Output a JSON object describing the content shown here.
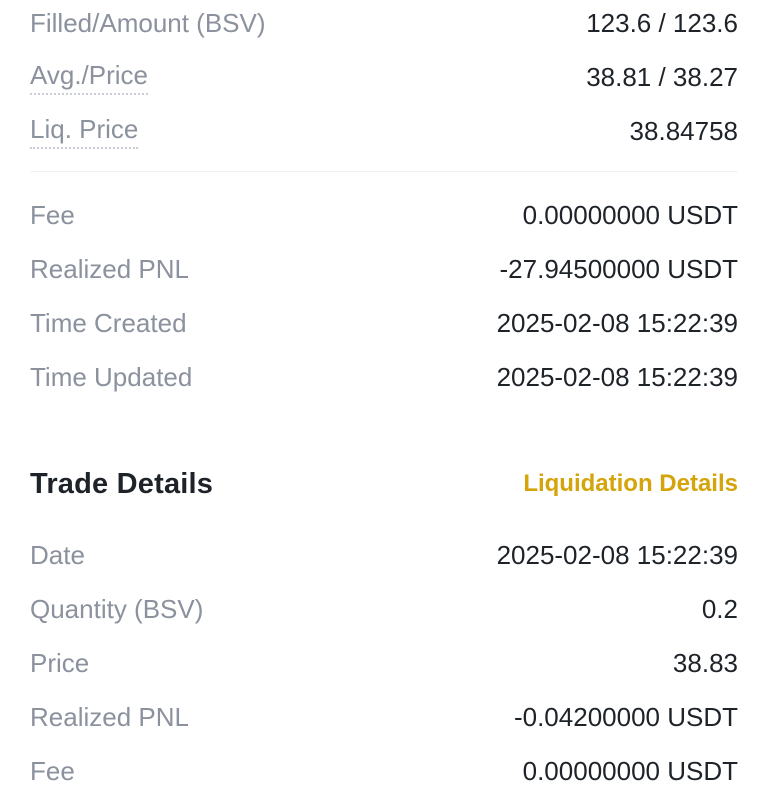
{
  "colors": {
    "background": "#FFFFFF",
    "label_text": "#8B929E",
    "value_text": "#1E2329",
    "link_gold": "#D5A30A",
    "divider": "#EEF0F3"
  },
  "order_summary": {
    "rows": [
      {
        "label": "Filled/Amount (BSV)",
        "value": "123.6 / 123.6"
      },
      {
        "label": "Avg./Price",
        "value": "38.81 / 38.27"
      },
      {
        "label": "Liq. Price",
        "value": "38.84758"
      }
    ]
  },
  "order_meta": {
    "rows": [
      {
        "label": "Fee",
        "value": "0.00000000 USDT"
      },
      {
        "label": "Realized PNL",
        "value": "-27.94500000 USDT"
      },
      {
        "label": "Time Created",
        "value": "2025-02-08 15:22:39"
      },
      {
        "label": "Time Updated",
        "value": "2025-02-08 15:22:39"
      }
    ]
  },
  "trade_details": {
    "title": "Trade Details",
    "link": "Liquidation Details",
    "rows": [
      {
        "label": "Date",
        "value": "2025-02-08 15:22:39"
      },
      {
        "label": "Quantity (BSV)",
        "value": "0.2"
      },
      {
        "label": "Price",
        "value": "38.83"
      },
      {
        "label": "Realized PNL",
        "value": "-0.04200000 USDT"
      },
      {
        "label": "Fee",
        "value": "0.00000000 USDT"
      }
    ]
  }
}
